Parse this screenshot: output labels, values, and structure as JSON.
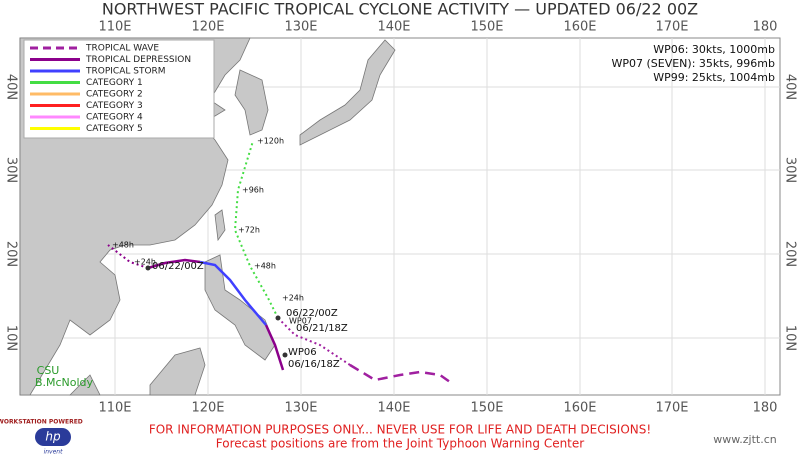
{
  "title": "NORTHWEST PACIFIC TROPICAL CYCLONE ACTIVITY — UPDATED 06/22 00Z",
  "lon_labels": [
    "110E",
    "120E",
    "130E",
    "140E",
    "150E",
    "160E",
    "170E",
    "180"
  ],
  "lat_labels": [
    "40N",
    "30N",
    "20N",
    "10N"
  ],
  "legend": [
    {
      "label": "TROPICAL WAVE",
      "color": "#a020a0"
    },
    {
      "label": "TROPICAL DEPRESSION",
      "color": "#8b008b"
    },
    {
      "label": "TROPICAL STORM",
      "color": "#4040ff"
    },
    {
      "label": "CATEGORY 1",
      "color": "#44dd44"
    },
    {
      "label": "CATEGORY 2",
      "color": "#ffbb66"
    },
    {
      "label": "CATEGORY 3",
      "color": "#ff2020"
    },
    {
      "label": "CATEGORY 4",
      "color": "#ff88ff"
    },
    {
      "label": "CATEGORY 5",
      "color": "#ffff00"
    }
  ],
  "storm_info": [
    "WP06: 30kts, 1000mb",
    "WP07 (SEVEN): 35kts, 996mb",
    "WP99: 25kts, 1004mb"
  ],
  "track_labels": [
    "+120h",
    "+96h",
    "+72h",
    "+48h",
    "+24h",
    "06/22/00Z",
    "WP07",
    "06/21/18Z",
    "WP06",
    "06/16/18Z",
    "+48h",
    "+24h",
    "06/22/00Z"
  ],
  "credits": {
    "org": "CSU",
    "author": "B.McNoldy"
  },
  "logo": {
    "tagline": "WORKSTATION POWERED",
    "brand": "invent"
  },
  "footer": [
    "FOR INFORMATION PURPOSES ONLY... NEVER USE FOR LIFE AND DEATH DECISIONS!",
    "Forecast positions are from the Joint Typhoon Warning Center"
  ],
  "watermark": "www.zjtt.cn"
}
